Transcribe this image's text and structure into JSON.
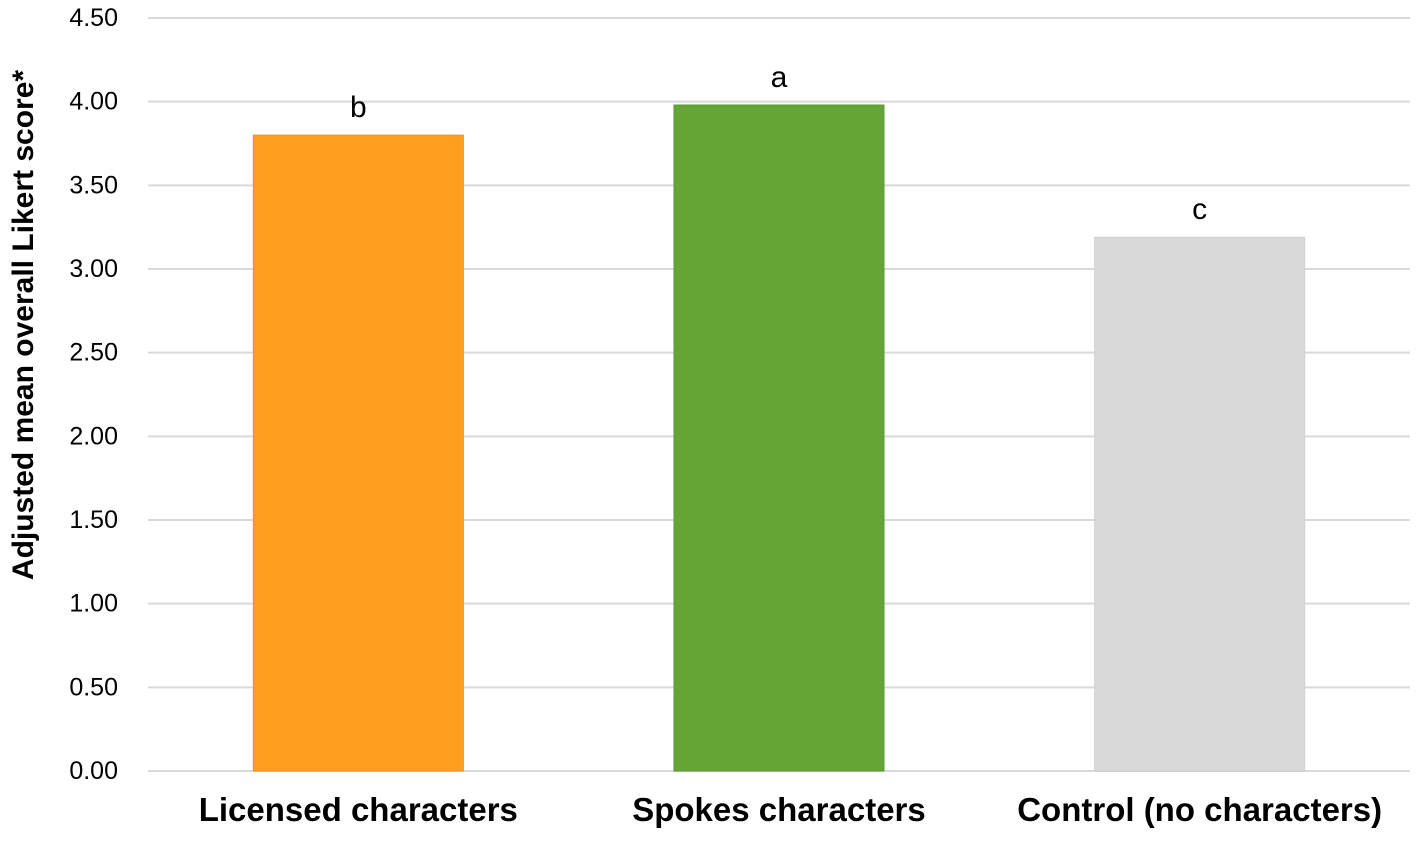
{
  "chart_data": {
    "type": "bar",
    "title": "",
    "xlabel": "",
    "ylabel": "Adjusted mean overall Likert score*",
    "ylim": [
      0,
      4.5
    ],
    "yticks": [
      "0.00",
      "0.50",
      "1.00",
      "1.50",
      "2.00",
      "2.50",
      "3.00",
      "3.50",
      "4.00",
      "4.50"
    ],
    "grid": true,
    "legend": "none",
    "categories": [
      "Licensed characters",
      "Spokes characters",
      "Control (no characters)"
    ],
    "values": [
      3.8,
      3.98,
      3.19
    ],
    "significance_labels": [
      "b",
      "a",
      "c"
    ],
    "colors": [
      "#FF9E1F",
      "#64A536",
      "#D9D9D9"
    ],
    "border_colors": [
      "#F0921A",
      "#5A9A30",
      "#D0D0D0"
    ]
  }
}
